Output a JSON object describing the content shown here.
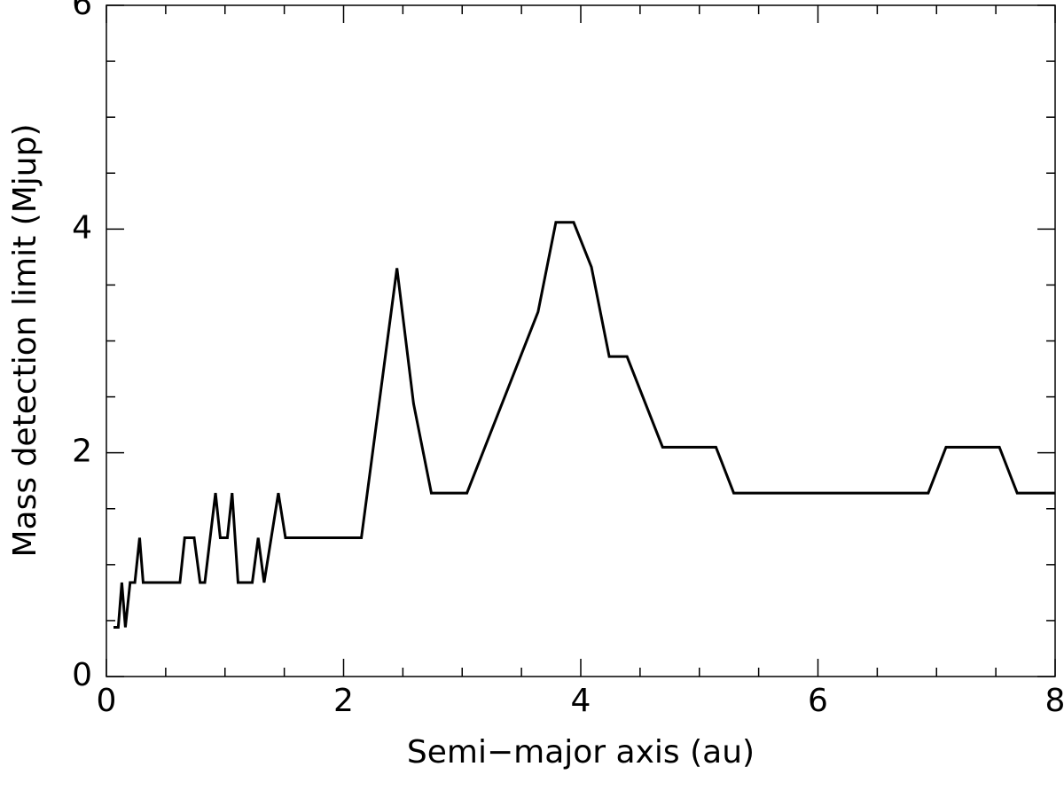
{
  "chart_data": {
    "type": "line",
    "x_label": "Semi−major axis (au)",
    "y_label": "Mass detection limit (Mjup)",
    "color": "#000000",
    "xlim": [
      0,
      8
    ],
    "ylim": [
      0,
      6
    ],
    "xticks": [
      0,
      2,
      4,
      6,
      8
    ],
    "yticks": [
      0,
      2,
      4,
      6
    ],
    "xminorticks": [
      0.5,
      1,
      1.5,
      2.5,
      3,
      3.5,
      4.5,
      5,
      5.5,
      6.5,
      7,
      7.5
    ],
    "yminorticks": [
      0.5,
      1,
      1.5,
      2.5,
      3,
      3.5,
      4.5,
      5,
      5.5
    ],
    "grid": false,
    "x": [
      0.06,
      0.1,
      0.13,
      0.16,
      0.2,
      0.24,
      0.28,
      0.31,
      0.62,
      0.66,
      0.74,
      0.79,
      0.83,
      0.92,
      0.96,
      1.02,
      1.06,
      1.11,
      1.23,
      1.28,
      1.33,
      1.45,
      1.51,
      2.15,
      2.45,
      2.59,
      2.74,
      3.04,
      3.64,
      3.79,
      3.94,
      4.09,
      4.24,
      4.39,
      4.69,
      5.14,
      5.29,
      6.93,
      7.08,
      7.53,
      7.68,
      8.0
    ],
    "values": [
      0.44,
      0.44,
      0.84,
      0.44,
      0.84,
      0.84,
      1.24,
      0.84,
      0.84,
      1.24,
      1.24,
      0.84,
      0.84,
      1.64,
      1.24,
      1.24,
      1.64,
      0.84,
      0.84,
      1.24,
      0.84,
      1.64,
      1.24,
      1.24,
      3.65,
      2.44,
      1.64,
      1.64,
      3.26,
      4.06,
      4.06,
      3.66,
      2.86,
      2.86,
      2.05,
      2.05,
      1.64,
      1.64,
      2.05,
      2.05,
      1.64,
      1.64
    ]
  }
}
